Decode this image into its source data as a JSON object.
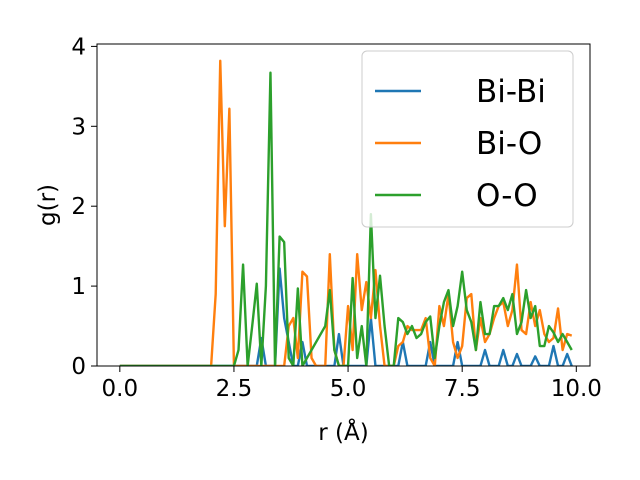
{
  "chart_data": {
    "type": "line",
    "xlabel": "r (Å)",
    "ylabel": "g(r)",
    "xlim": [
      -0.5,
      10.3
    ],
    "ylim": [
      0,
      4.03
    ],
    "xticks": [
      0.0,
      2.5,
      5.0,
      7.5,
      10.0
    ],
    "xtick_labels": [
      "0.0",
      "2.5",
      "5.0",
      "7.5",
      "10.0"
    ],
    "yticks": [
      0,
      1,
      2,
      3,
      4
    ],
    "ytick_labels": [
      "0",
      "1",
      "2",
      "3",
      "4"
    ],
    "grid": false,
    "legend_position": "top-right",
    "series": [
      {
        "name": "Bi-Bi",
        "color": "#1f77b4",
        "points": [
          [
            0.0,
            0
          ],
          [
            3.0,
            0
          ],
          [
            3.1,
            0.35
          ],
          [
            3.2,
            0
          ],
          [
            3.4,
            0
          ],
          [
            3.5,
            1.22
          ],
          [
            3.6,
            0.6
          ],
          [
            3.8,
            0
          ],
          [
            3.9,
            0
          ],
          [
            4.0,
            0.3
          ],
          [
            4.1,
            0
          ],
          [
            4.7,
            0
          ],
          [
            4.8,
            0.4
          ],
          [
            4.9,
            0
          ],
          [
            5.4,
            0
          ],
          [
            5.5,
            0.6
          ],
          [
            5.6,
            0
          ],
          [
            6.1,
            0
          ],
          [
            6.2,
            0.3
          ],
          [
            6.3,
            0
          ],
          [
            6.7,
            0
          ],
          [
            6.8,
            0.3
          ],
          [
            6.9,
            0
          ],
          [
            7.3,
            0
          ],
          [
            7.4,
            0.3
          ],
          [
            7.5,
            0
          ],
          [
            7.9,
            0
          ],
          [
            8.0,
            0.2
          ],
          [
            8.1,
            0
          ],
          [
            8.3,
            0
          ],
          [
            8.4,
            0.2
          ],
          [
            8.5,
            0
          ],
          [
            8.6,
            0
          ],
          [
            8.7,
            0.15
          ],
          [
            8.8,
            0
          ],
          [
            9.0,
            0
          ],
          [
            9.1,
            0.12
          ],
          [
            9.2,
            0
          ],
          [
            9.4,
            0
          ],
          [
            9.5,
            0.25
          ],
          [
            9.6,
            0
          ],
          [
            9.7,
            0
          ],
          [
            9.8,
            0.15
          ],
          [
            9.9,
            0
          ]
        ]
      },
      {
        "name": "Bi-O",
        "color": "#ff7f0e",
        "points": [
          [
            0.0,
            0
          ],
          [
            2.0,
            0
          ],
          [
            2.1,
            0.9
          ],
          [
            2.2,
            3.82
          ],
          [
            2.3,
            1.75
          ],
          [
            2.4,
            3.22
          ],
          [
            2.5,
            0
          ],
          [
            3.6,
            0
          ],
          [
            3.7,
            0.5
          ],
          [
            3.8,
            0.6
          ],
          [
            3.9,
            0.1
          ],
          [
            4.0,
            1.18
          ],
          [
            4.1,
            1.12
          ],
          [
            4.2,
            0.1
          ],
          [
            4.3,
            0
          ],
          [
            4.5,
            0
          ],
          [
            4.6,
            1.4
          ],
          [
            4.7,
            0.2
          ],
          [
            4.8,
            0
          ],
          [
            4.9,
            0
          ],
          [
            5.0,
            0.75
          ],
          [
            5.1,
            0.2
          ],
          [
            5.2,
            1.4
          ],
          [
            5.3,
            0.7
          ],
          [
            5.4,
            1.05
          ],
          [
            5.5,
            0.6
          ],
          [
            5.6,
            1.2
          ],
          [
            5.7,
            0.5
          ],
          [
            5.8,
            0
          ],
          [
            6.0,
            0
          ],
          [
            6.1,
            0.25
          ],
          [
            6.2,
            0.3
          ],
          [
            6.3,
            0.5
          ],
          [
            6.4,
            0.45
          ],
          [
            6.5,
            0.45
          ],
          [
            6.6,
            0.45
          ],
          [
            6.7,
            0.6
          ],
          [
            6.8,
            0.1
          ],
          [
            6.9,
            0
          ],
          [
            7.0,
            0.75
          ],
          [
            7.1,
            0.5
          ],
          [
            7.2,
            0.9
          ],
          [
            7.3,
            0.3
          ],
          [
            7.4,
            0.1
          ],
          [
            7.5,
            0.25
          ],
          [
            7.6,
            0.85
          ],
          [
            7.7,
            0.9
          ],
          [
            7.8,
            0.2
          ],
          [
            7.9,
            0.6
          ],
          [
            8.0,
            0.3
          ],
          [
            8.1,
            0.4
          ],
          [
            8.2,
            0.6
          ],
          [
            8.3,
            0.75
          ],
          [
            8.4,
            0.8
          ],
          [
            8.5,
            0.5
          ],
          [
            8.6,
            0.7
          ],
          [
            8.7,
            1.27
          ],
          [
            8.8,
            0.45
          ],
          [
            8.9,
            0.4
          ],
          [
            9.0,
            0.8
          ],
          [
            9.1,
            0.5
          ],
          [
            9.2,
            0.7
          ],
          [
            9.3,
            0.4
          ],
          [
            9.4,
            0.3
          ],
          [
            9.5,
            0.35
          ],
          [
            9.6,
            0.72
          ],
          [
            9.7,
            0.2
          ],
          [
            9.8,
            0.4
          ],
          [
            9.9,
            0.38
          ]
        ]
      },
      {
        "name": "O-O",
        "color": "#2ca02c",
        "points": [
          [
            0.0,
            0
          ],
          [
            2.5,
            0
          ],
          [
            2.6,
            0.2
          ],
          [
            2.7,
            1.27
          ],
          [
            2.8,
            0
          ],
          [
            2.9,
            0.5
          ],
          [
            3.0,
            1.03
          ],
          [
            3.1,
            0
          ],
          [
            3.2,
            1.0
          ],
          [
            3.3,
            3.67
          ],
          [
            3.4,
            0
          ],
          [
            3.5,
            1.62
          ],
          [
            3.6,
            1.55
          ],
          [
            3.7,
            0.1
          ],
          [
            3.8,
            0
          ],
          [
            3.9,
            0.97
          ],
          [
            4.0,
            0
          ],
          [
            4.5,
            0.5
          ],
          [
            4.6,
            0.95
          ],
          [
            4.7,
            0.2
          ],
          [
            4.8,
            0
          ],
          [
            5.0,
            0
          ],
          [
            5.1,
            1.1
          ],
          [
            5.2,
            0.1
          ],
          [
            5.3,
            0.5
          ],
          [
            5.4,
            0
          ],
          [
            5.5,
            1.9
          ],
          [
            5.6,
            0.6
          ],
          [
            5.7,
            1.13
          ],
          [
            5.8,
            0.5
          ],
          [
            5.9,
            0
          ],
          [
            6.0,
            0
          ],
          [
            6.1,
            0.6
          ],
          [
            6.2,
            0.55
          ],
          [
            6.3,
            0.4
          ],
          [
            6.4,
            0.5
          ],
          [
            6.5,
            0.35
          ],
          [
            6.6,
            0.4
          ],
          [
            6.7,
            0.55
          ],
          [
            6.8,
            0.62
          ],
          [
            6.9,
            0.1
          ],
          [
            7.0,
            0.5
          ],
          [
            7.1,
            0.8
          ],
          [
            7.2,
            0.95
          ],
          [
            7.3,
            0.5
          ],
          [
            7.4,
            0.75
          ],
          [
            7.5,
            1.18
          ],
          [
            7.6,
            0.7
          ],
          [
            7.7,
            0.55
          ],
          [
            7.8,
            0.2
          ],
          [
            7.9,
            0.8
          ],
          [
            8.0,
            0.4
          ],
          [
            8.1,
            0.4
          ],
          [
            8.2,
            0.75
          ],
          [
            8.3,
            0.75
          ],
          [
            8.4,
            0.85
          ],
          [
            8.5,
            0.7
          ],
          [
            8.6,
            0.9
          ],
          [
            8.7,
            0.4
          ],
          [
            8.8,
            0.55
          ],
          [
            8.9,
            0.95
          ],
          [
            9.0,
            0.6
          ],
          [
            9.1,
            0.75
          ],
          [
            9.2,
            0.25
          ],
          [
            9.3,
            0.25
          ],
          [
            9.4,
            0.5
          ],
          [
            9.5,
            0.42
          ],
          [
            9.6,
            0.3
          ],
          [
            9.7,
            0.4
          ],
          [
            9.8,
            0.3
          ],
          [
            9.9,
            0.2
          ]
        ]
      }
    ]
  }
}
